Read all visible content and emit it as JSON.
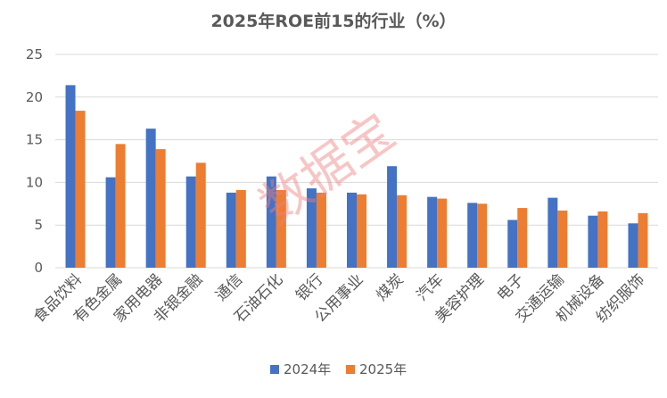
{
  "chart_data": {
    "type": "bar",
    "title": "2025年ROE前15的行业（%）",
    "categories": [
      "食品饮料",
      "有色金属",
      "家用电器",
      "非银金融",
      "通信",
      "石油石化",
      "银行",
      "公用事业",
      "煤炭",
      "汽车",
      "美容护理",
      "电子",
      "交通运输",
      "机械设备",
      "纺织服饰"
    ],
    "series": [
      {
        "name": "2024年",
        "color": "#4472C4",
        "values": [
          21.4,
          10.6,
          16.3,
          10.7,
          8.8,
          10.7,
          9.3,
          8.8,
          11.9,
          8.3,
          7.6,
          5.6,
          8.2,
          6.1,
          5.2
        ]
      },
      {
        "name": "2025年",
        "color": "#ED7D31",
        "values": [
          18.4,
          14.5,
          13.9,
          12.3,
          9.1,
          9.1,
          8.8,
          8.6,
          8.5,
          8.1,
          7.5,
          7.0,
          6.7,
          6.6,
          6.4
        ]
      }
    ],
    "ylim": [
      0,
      25
    ],
    "yticks": [
      0,
      5,
      10,
      15,
      20,
      25
    ],
    "grid": true,
    "legend_position": "bottom"
  },
  "watermark": "数据宝"
}
